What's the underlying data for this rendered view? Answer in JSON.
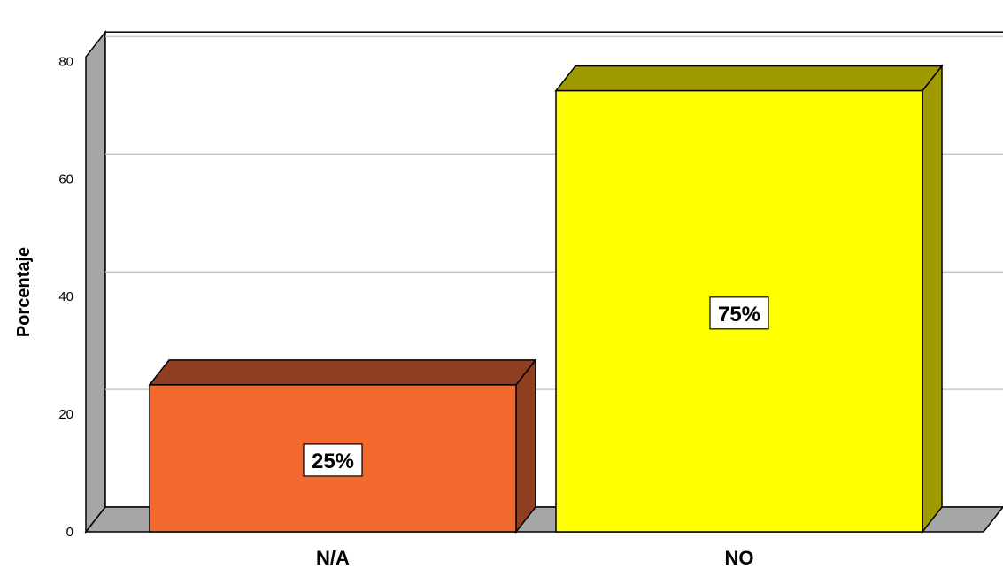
{
  "chart_data": {
    "type": "bar",
    "categories": [
      "N/A",
      "NO"
    ],
    "values": [
      25,
      75
    ],
    "value_labels": [
      "25%",
      "75%"
    ],
    "title": "",
    "xlabel": "",
    "ylabel": "Porcentaje",
    "ylim": [
      0,
      85
    ],
    "yticks": [
      "0",
      "20",
      "40",
      "60",
      "80"
    ],
    "grid": true,
    "style": "3d",
    "bar_colors": [
      "#F26A2E",
      "#FFFF00"
    ],
    "bar_side_colors": [
      "#8E3F1F",
      "#9F9A00"
    ],
    "wall_color": "#A6A6A6"
  }
}
